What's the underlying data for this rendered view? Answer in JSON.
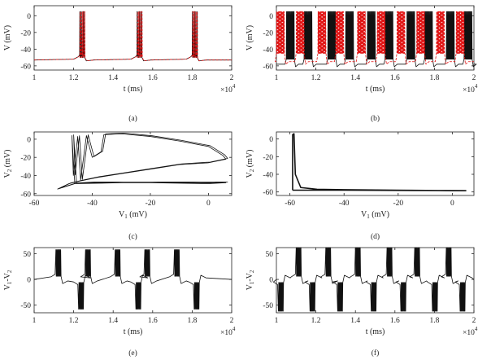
{
  "colors": {
    "black_trace": "#111111",
    "red_trace": "#e01010",
    "axis": "#222222"
  },
  "panels": [
    {
      "label": "(a)",
      "xlabel": "t (ms)",
      "ylabel": "V (mV)",
      "x_multiplier": "×10",
      "x_multiplier_exp": "4",
      "x_ticks": [
        "1",
        "1.2",
        "1.4",
        "1.6",
        "1.8",
        "2"
      ],
      "y_ticks": [
        "0",
        "-20",
        "-40",
        "-60"
      ]
    },
    {
      "label": "(b)",
      "xlabel": "t (ms)",
      "ylabel": "V (mV)",
      "x_multiplier": "×10",
      "x_multiplier_exp": "4",
      "x_ticks": [
        "1",
        "1.2",
        "1.4",
        "1.6",
        "1.8",
        "2"
      ],
      "y_ticks": [
        "0",
        "-20",
        "-40",
        "-60"
      ]
    },
    {
      "label": "(c)",
      "xlabel": "V",
      "xlabel_sub": "1",
      "xlabel_unit": " (mV)",
      "ylabel": "V",
      "ylabel_sub": "2",
      "ylabel_unit": " (mV)",
      "x_ticks": [
        "-60",
        "-40",
        "-20",
        "0"
      ],
      "y_ticks": [
        "0",
        "-20",
        "-40",
        "-60"
      ]
    },
    {
      "label": "(d)",
      "xlabel": "V",
      "xlabel_sub": "1",
      "xlabel_unit": " (mV)",
      "ylabel": "V",
      "ylabel_sub": "2",
      "ylabel_unit": " (mV)",
      "x_ticks": [
        "-60",
        "-40",
        "-20",
        "0"
      ],
      "y_ticks": [
        "0",
        "-20",
        "-40",
        "-60"
      ]
    },
    {
      "label": "(e)",
      "xlabel": "t (ms)",
      "ylabel": "V",
      "ylabel_sub": "1",
      "ylabel_mid": "-V",
      "ylabel_sub2": "2",
      "x_multiplier": "×10",
      "x_multiplier_exp": "4",
      "x_ticks": [
        "1",
        "1.2",
        "1.4",
        "1.6",
        "1.8",
        "2"
      ],
      "y_ticks": [
        "50",
        "0",
        "-50"
      ]
    },
    {
      "label": "(f)",
      "xlabel": "t (ms)",
      "ylabel": "V",
      "ylabel_sub": "1",
      "ylabel_mid": "-V",
      "ylabel_sub2": "2",
      "x_multiplier": "×10",
      "x_multiplier_exp": "4",
      "x_ticks": [
        "1",
        "1.2",
        "1.4",
        "1.6",
        "1.8",
        "2"
      ],
      "y_ticks": [
        "50",
        "0",
        "-50"
      ]
    }
  ],
  "chart_data": [
    {
      "type": "line",
      "panel": "(a)",
      "xlim": [
        10000,
        20000
      ],
      "ylim": [
        -65,
        12
      ],
      "x_scale_factor": 10000,
      "baseline_mV": -53,
      "spike_peak_mV": 5,
      "bursts": [
        {
          "start": 12300,
          "spikes": 5,
          "interval": 60
        },
        {
          "start": 15200,
          "spikes": 5,
          "interval": 60
        },
        {
          "start": 18000,
          "spikes": 5,
          "interval": 60
        }
      ],
      "series": [
        {
          "color": "black",
          "style": "solid"
        },
        {
          "color": "red",
          "style": "dashed"
        }
      ]
    },
    {
      "type": "line",
      "panel": "(b)",
      "xlim": [
        10000,
        20000
      ],
      "ylim": [
        -65,
        12
      ],
      "x_scale_factor": 10000,
      "baseline_mV": -58,
      "spike_peak_mV": 5,
      "bursts_black": [
        10500,
        11400,
        12600,
        13500,
        14600,
        15500,
        16600,
        17500,
        18600,
        19500
      ],
      "bursts_red": [
        10000,
        11000,
        12100,
        13000,
        14100,
        15100,
        16100,
        17100,
        18100,
        19100
      ],
      "burst_duration_ms": 420,
      "series": [
        {
          "color": "black",
          "style": "solid"
        },
        {
          "color": "red",
          "style": "dashed"
        }
      ]
    },
    {
      "type": "line",
      "panel": "(c)",
      "xlim": [
        -60,
        8
      ],
      "ylim": [
        -62,
        8
      ],
      "curve": [
        [
          -52,
          -55
        ],
        [
          -46,
          -49
        ],
        [
          -30,
          -48
        ],
        [
          -10,
          -48
        ],
        [
          6,
          -48
        ],
        [
          0,
          -49
        ],
        [
          -20,
          -48
        ],
        [
          -40,
          -48
        ],
        [
          -46,
          -49
        ],
        [
          -47,
          4
        ],
        [
          -46.5,
          -40
        ],
        [
          -45,
          3
        ],
        [
          -44,
          -45
        ],
        [
          -42,
          4
        ],
        [
          -40,
          -20
        ],
        [
          -37,
          -14
        ],
        [
          -36,
          5
        ],
        [
          -30,
          6
        ],
        [
          -20,
          3
        ],
        [
          -10,
          -2
        ],
        [
          0,
          -8
        ],
        [
          5,
          -18
        ],
        [
          6,
          -22
        ],
        [
          0,
          -26
        ],
        [
          -10,
          -28
        ],
        [
          -20,
          -33
        ],
        [
          -30,
          -38
        ],
        [
          -38,
          -42
        ],
        [
          -44,
          -46
        ],
        [
          -48,
          -49
        ],
        [
          -52,
          -55
        ]
      ]
    },
    {
      "type": "line",
      "panel": "(d)",
      "xlim": [
        -65,
        8
      ],
      "ylim": [
        -64,
        8
      ],
      "curve": [
        [
          -59,
          -58
        ],
        [
          -59,
          5
        ],
        [
          -58.5,
          6
        ],
        [
          -58,
          -40
        ],
        [
          -56,
          -55
        ],
        [
          -50,
          -57
        ],
        [
          -40,
          -57.5
        ],
        [
          -20,
          -58
        ],
        [
          0,
          -58.5
        ],
        [
          5,
          -58.5
        ],
        [
          -10,
          -58.3
        ],
        [
          -40,
          -58
        ],
        [
          -55,
          -58
        ],
        [
          -59,
          -58
        ]
      ]
    },
    {
      "type": "line",
      "panel": "(e)",
      "xlim": [
        10000,
        20000
      ],
      "ylim": [
        -65,
        62
      ],
      "x_scale_factor": 10000,
      "bursts_positive": [
        11100,
        12600,
        14100,
        15600,
        17100
      ],
      "bursts_negative": [
        12250,
        15150,
        18100
      ],
      "spike_amplitude": 58
    },
    {
      "type": "line",
      "panel": "(f)",
      "xlim": [
        10000,
        20000
      ],
      "ylim": [
        -65,
        62
      ],
      "x_scale_factor": 10000,
      "bursts_positive": [
        11000,
        12500,
        14000,
        15600,
        17000,
        18600
      ],
      "bursts_negative": [
        10100,
        11700,
        13100,
        14800,
        16300,
        17900,
        19300
      ],
      "spike_amplitude": 62
    }
  ]
}
